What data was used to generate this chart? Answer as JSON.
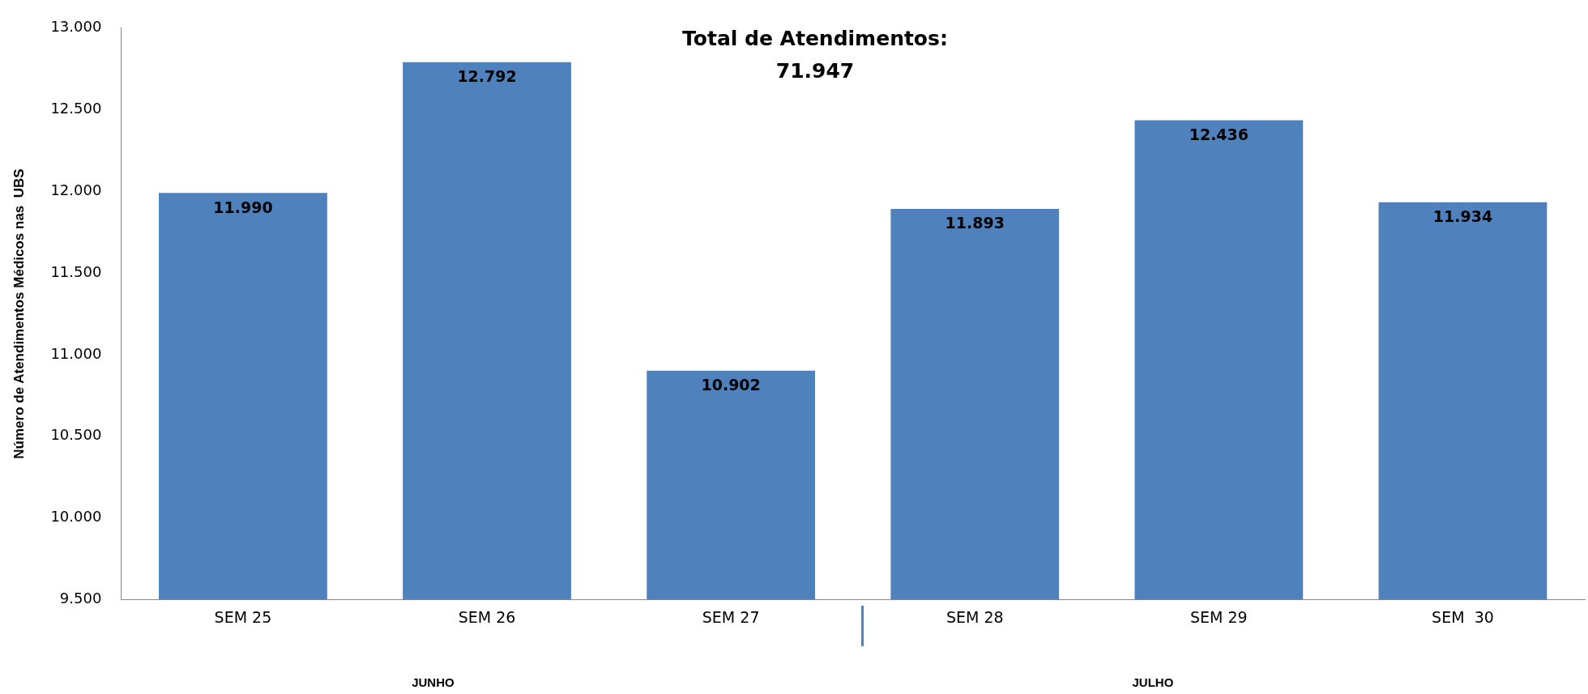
{
  "chart_data": {
    "type": "bar",
    "title": "Total de Atendimentos: 71.947",
    "ylabel": "Número de Atendimentos Médicos nas  UBS",
    "categories": [
      "SEM 25",
      "SEM 26",
      "SEM 27",
      "SEM 28",
      "SEM 29",
      "SEM  30"
    ],
    "values": [
      11990,
      12792,
      10902,
      11893,
      12436,
      11934
    ],
    "color": "#4f81bd",
    "ylim": [
      9500,
      13000
    ],
    "yticks": [
      {
        "value": 9500,
        "label": "9.500"
      },
      {
        "value": 10000,
        "label": "10.000"
      },
      {
        "value": 10500,
        "label": "10.500"
      },
      {
        "value": 11000,
        "label": "11.000"
      },
      {
        "value": 11500,
        "label": "11.500"
      },
      {
        "value": 12000,
        "label": "12.000"
      },
      {
        "value": 12500,
        "label": "12.500"
      },
      {
        "value": 13000,
        "label": "13.000"
      }
    ],
    "value_labels": [
      "11.990",
      "12.792",
      "10.902",
      "11.893",
      "12.436",
      "11.934"
    ],
    "annotations": [
      "JUNHO",
      "JULHO"
    ],
    "grid": false,
    "legend": false
  }
}
